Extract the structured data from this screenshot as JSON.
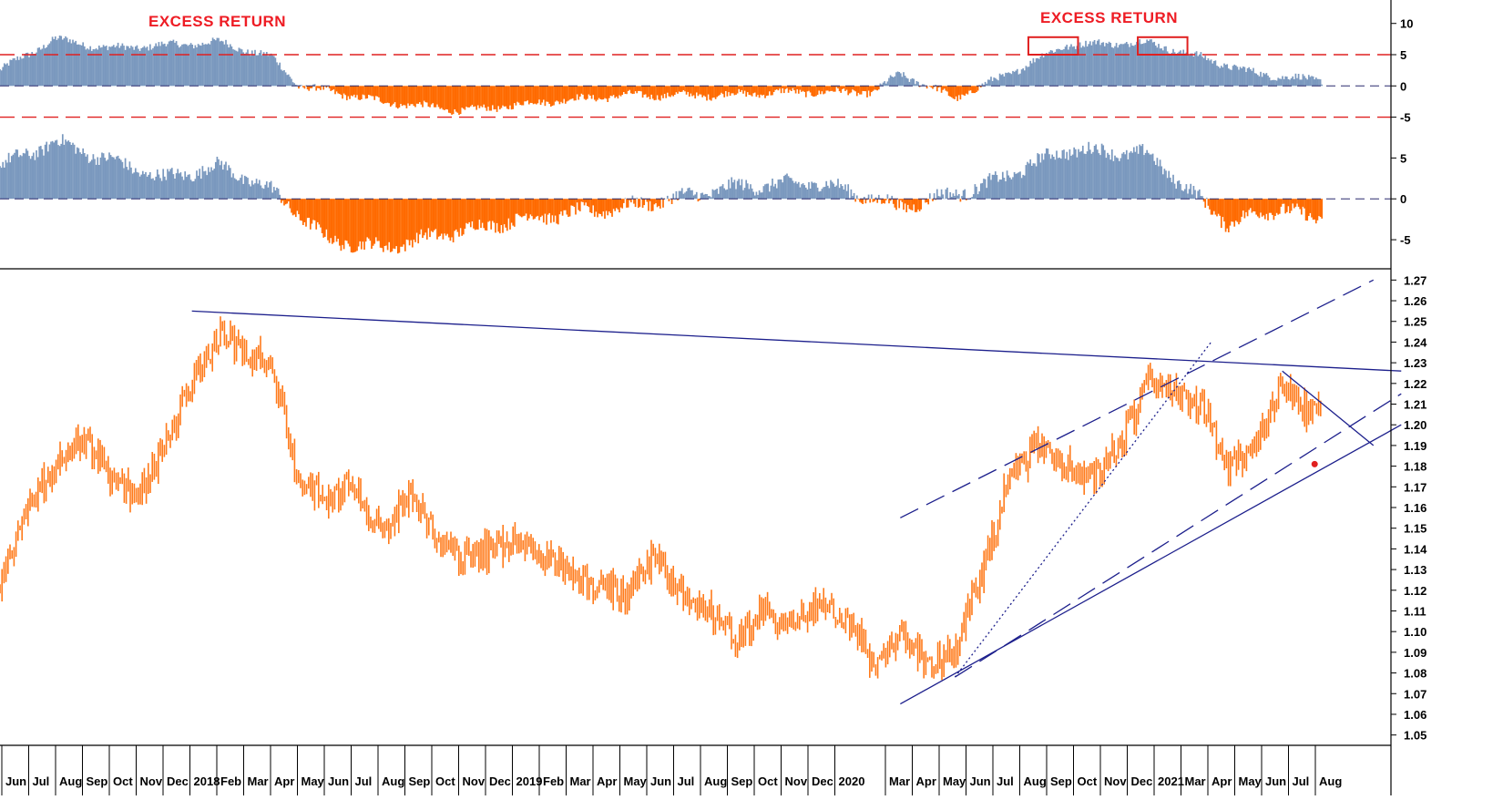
{
  "colors": {
    "positive": "#7a98be",
    "negative": "#ff6a00",
    "price": "#ff7a1a",
    "trend": "#1c1f8c",
    "threshold": "#e02020",
    "highlight": "#e02020"
  },
  "chart_data": [
    {
      "type": "area",
      "panel": "top",
      "annotations": [
        "EXCESS RETURN",
        "EXCESS RETURN"
      ],
      "y_ticks": [
        "10",
        "5",
        "0",
        "-5"
      ],
      "ylim": [
        -5.5,
        12
      ],
      "threshold_lines": [
        5,
        -5
      ],
      "zero_line": 0,
      "series": [
        {
          "x": [
            "2017-06",
            "2017-08",
            "2017-10",
            "2017-12",
            "2018-02",
            "2018-04",
            "2018-05",
            "2018-08",
            "2018-11",
            "2019-02",
            "2019-05",
            "2019-08",
            "2019-11",
            "2020-02",
            "2020-03",
            "2020-05",
            "2020-07",
            "2020-09",
            "2020-12",
            "2021-02",
            "2021-04",
            "2021-06"
          ],
          "values": [
            2.5,
            7.5,
            6.0,
            6.5,
            7.0,
            4.5,
            0,
            -2.5,
            -4.0,
            -2.5,
            -1.5,
            -1.5,
            -1.0,
            -1.0,
            2.0,
            -2.0,
            2.0,
            6.5,
            7.0,
            4.5,
            2.0,
            1.0
          ]
        }
      ],
      "highlighted_periods": [
        [
          "2020-08",
          "2020-09"
        ],
        [
          "2020-12",
          "2021-01"
        ]
      ]
    },
    {
      "type": "area",
      "panel": "middle",
      "y_ticks": [
        "5",
        "0",
        "-5"
      ],
      "ylim": [
        -8,
        8.5
      ],
      "zero_line": 0,
      "series": [
        {
          "x": [
            "2017-06",
            "2017-08",
            "2017-12",
            "2018-02",
            "2018-04",
            "2018-06",
            "2018-08",
            "2018-10",
            "2019-01",
            "2019-05",
            "2019-09",
            "2019-12",
            "2020-03",
            "2020-06",
            "2020-09",
            "2020-12",
            "2021-03",
            "2021-05",
            "2021-06"
          ],
          "values": [
            4.0,
            7.0,
            2.5,
            4.0,
            1.0,
            -5.0,
            -6.0,
            -4.5,
            -2.5,
            -1.0,
            1.5,
            2.0,
            -1.0,
            1.5,
            6.0,
            5.5,
            -3.0,
            -1.0,
            -2.5
          ]
        }
      ]
    },
    {
      "type": "line",
      "panel": "bottom",
      "y_ticks": [
        "1.27",
        "1.26",
        "1.25",
        "1.24",
        "1.23",
        "1.22",
        "1.21",
        "1.20",
        "1.19",
        "1.18",
        "1.17",
        "1.16",
        "1.15",
        "1.14",
        "1.13",
        "1.12",
        "1.11",
        "1.10",
        "1.09",
        "1.08",
        "1.07",
        "1.06",
        "1.05"
      ],
      "ylim": [
        1.045,
        1.275
      ],
      "x_tick_labels": [
        "Jun",
        "Jul",
        "Aug",
        "Sep",
        "Oct",
        "Nov",
        "Dec",
        "2018",
        "Feb",
        "Mar",
        "Apr",
        "May",
        "Jun",
        "Jul",
        "Aug",
        "Sep",
        "Oct",
        "Nov",
        "Dec",
        "2019",
        "Feb",
        "Mar",
        "Apr",
        "May",
        "Jun",
        "Jul",
        "Aug",
        "Sep",
        "Oct",
        "Nov",
        "Dec",
        "2020",
        "Mar",
        "Apr",
        "May",
        "Jun",
        "Jul",
        "Aug",
        "Sep",
        "Oct",
        "Nov",
        "Dec",
        "2021",
        "Mar",
        "Apr",
        "May",
        "Jun",
        "Jul",
        "Aug"
      ],
      "series": [
        {
          "x": [
            "2017-06",
            "2017-07",
            "2017-08",
            "2017-09",
            "2017-10",
            "2017-11",
            "2017-12",
            "2018-01",
            "2018-02",
            "2018-03",
            "2018-04",
            "2018-05",
            "2018-06",
            "2018-07",
            "2018-08",
            "2018-09",
            "2018-10",
            "2018-11",
            "2018-12",
            "2019-01",
            "2019-02",
            "2019-03",
            "2019-04",
            "2019-05",
            "2019-06",
            "2019-07",
            "2019-08",
            "2019-09",
            "2019-10",
            "2019-11",
            "2019-12",
            "2020-01",
            "2020-02",
            "2020-03",
            "2020-04",
            "2020-05",
            "2020-06",
            "2020-07",
            "2020-08",
            "2020-09",
            "2020-10",
            "2020-11",
            "2020-12",
            "2021-01",
            "2021-02",
            "2021-03",
            "2021-04",
            "2021-05",
            "2021-06"
          ],
          "values": [
            1.122,
            1.16,
            1.18,
            1.195,
            1.175,
            1.165,
            1.19,
            1.22,
            1.245,
            1.235,
            1.23,
            1.17,
            1.165,
            1.172,
            1.145,
            1.168,
            1.145,
            1.135,
            1.14,
            1.145,
            1.135,
            1.128,
            1.12,
            1.118,
            1.138,
            1.12,
            1.11,
            1.095,
            1.11,
            1.1,
            1.115,
            1.108,
            1.085,
            1.1,
            1.085,
            1.09,
            1.13,
            1.175,
            1.19,
            1.18,
            1.175,
            1.19,
            1.22,
            1.215,
            1.21,
            1.18,
            1.19,
            1.22,
            1.205
          ]
        }
      ],
      "trendlines": [
        {
          "from": [
            "2018-01",
            1.255
          ],
          "to": [
            "2021-08",
            1.226
          ],
          "style": "solid"
        },
        {
          "from": [
            "2020-03",
            1.065
          ],
          "to": [
            "2021-08",
            1.2
          ],
          "style": "solid"
        },
        {
          "from": [
            "2020-03",
            1.155
          ],
          "to": [
            "2021-07",
            1.27
          ],
          "style": "dashed"
        },
        {
          "from": [
            "2020-05",
            1.078
          ],
          "to": [
            "2021-08",
            1.215
          ],
          "style": "dashed"
        },
        {
          "from": [
            "2020-05",
            1.078
          ],
          "to": [
            "2021-01",
            1.24
          ],
          "style": "dotted"
        },
        {
          "from": [
            "2021-05",
            1.226
          ],
          "to": [
            "2021-07",
            1.19
          ],
          "style": "solid"
        }
      ],
      "markers": [
        {
          "x": "2021-06",
          "y": 1.181
        }
      ]
    }
  ]
}
